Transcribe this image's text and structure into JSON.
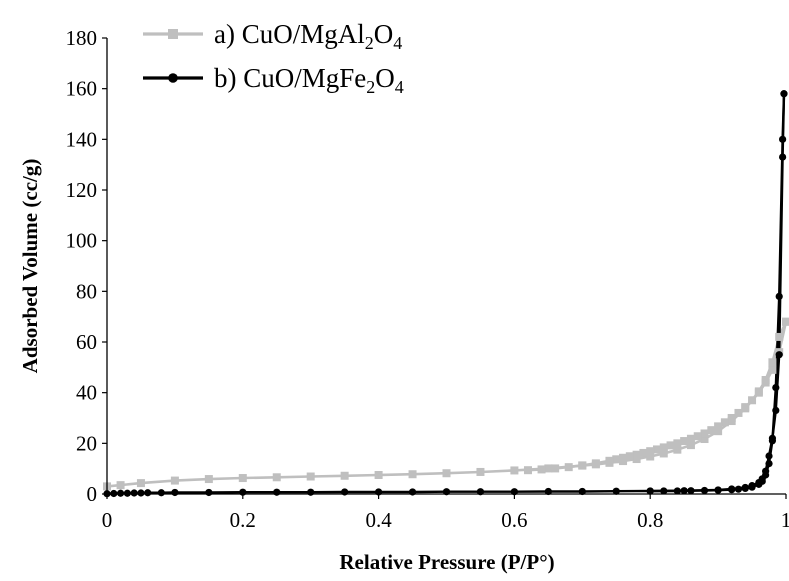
{
  "chart_data": {
    "type": "scatter",
    "xlabel": "Relative Pressure (P/P°)",
    "ylabel": "Adsorbed Volume (cc/g)",
    "xlim": [
      0,
      1
    ],
    "ylim": [
      0,
      180
    ],
    "x_ticks": [
      "0",
      "0.2",
      "0.4",
      "0.6",
      "0.8",
      "1"
    ],
    "y_ticks": [
      "0",
      "20",
      "40",
      "60",
      "80",
      "100",
      "120",
      "140",
      "160",
      "180"
    ],
    "grid": false,
    "legend_position": "top-left",
    "series": [
      {
        "name_parts": [
          "a) CuO/MgAl",
          "2",
          "O",
          "4"
        ],
        "color": "#bfbfbf",
        "marker": "square",
        "adsorption": {
          "x": [
            0.0,
            0.02,
            0.05,
            0.1,
            0.15,
            0.2,
            0.25,
            0.3,
            0.35,
            0.4,
            0.45,
            0.5,
            0.55,
            0.6,
            0.65,
            0.7,
            0.72,
            0.74,
            0.76,
            0.78,
            0.8,
            0.82,
            0.84,
            0.86,
            0.88,
            0.9,
            0.92,
            0.94,
            0.96,
            0.97,
            0.98,
            0.99,
            1.0
          ],
          "y": [
            3.0,
            3.5,
            4.3,
            5.3,
            5.9,
            6.3,
            6.6,
            6.9,
            7.2,
            7.5,
            7.8,
            8.2,
            8.7,
            9.3,
            10.1,
            11.2,
            11.7,
            12.3,
            13.0,
            13.8,
            14.8,
            16.0,
            17.5,
            19.3,
            21.7,
            24.8,
            28.8,
            33.8,
            40.0,
            44.0,
            49.0,
            56.0,
            68.0
          ]
        },
        "desorption": {
          "x": [
            1.0,
            0.99,
            0.98,
            0.97,
            0.96,
            0.95,
            0.94,
            0.93,
            0.92,
            0.91,
            0.9,
            0.89,
            0.88,
            0.87,
            0.86,
            0.85,
            0.84,
            0.83,
            0.82,
            0.81,
            0.8,
            0.79,
            0.78,
            0.77,
            0.76,
            0.75,
            0.74,
            0.72,
            0.7,
            0.68,
            0.66,
            0.64,
            0.62
          ],
          "y": [
            68.0,
            62.0,
            52.0,
            45.0,
            40.5,
            37.0,
            34.3,
            32.0,
            30.0,
            28.3,
            26.7,
            25.2,
            23.9,
            22.8,
            21.8,
            20.9,
            20.0,
            19.2,
            18.4,
            17.6,
            16.9,
            16.2,
            15.5,
            14.9,
            14.3,
            13.7,
            13.1,
            12.1,
            11.3,
            10.6,
            10.1,
            9.7,
            9.4
          ]
        }
      },
      {
        "name_parts": [
          "b) CuO/MgFe",
          "2",
          "O",
          "4"
        ],
        "color": "#000000",
        "marker": "circle",
        "adsorption": {
          "x": [
            0.0,
            0.01,
            0.02,
            0.03,
            0.04,
            0.05,
            0.06,
            0.08,
            0.1,
            0.15,
            0.2,
            0.25,
            0.3,
            0.35,
            0.4,
            0.45,
            0.5,
            0.55,
            0.6,
            0.65,
            0.7,
            0.75,
            0.8,
            0.85,
            0.9,
            0.92,
            0.94,
            0.95,
            0.96,
            0.965,
            0.97,
            0.975,
            0.98,
            0.985,
            0.99,
            0.995,
            0.997
          ],
          "y": [
            0.1,
            0.2,
            0.3,
            0.3,
            0.4,
            0.4,
            0.5,
            0.5,
            0.6,
            0.6,
            0.7,
            0.7,
            0.7,
            0.8,
            0.8,
            0.8,
            0.9,
            0.9,
            0.9,
            1.0,
            1.0,
            1.1,
            1.2,
            1.3,
            1.6,
            2.0,
            2.6,
            3.3,
            4.5,
            6.0,
            9.0,
            15.0,
            22.0,
            33.0,
            55.0,
            133.0,
            158.0
          ]
        },
        "desorption": {
          "x": [
            0.997,
            0.995,
            0.99,
            0.985,
            0.98,
            0.975,
            0.97,
            0.965,
            0.96,
            0.95,
            0.94,
            0.93,
            0.92,
            0.9,
            0.88,
            0.86,
            0.84,
            0.82,
            0.8
          ],
          "y": [
            158.0,
            140.0,
            78.0,
            42.0,
            21.0,
            12.0,
            7.5,
            5.0,
            3.8,
            2.7,
            2.2,
            1.9,
            1.7,
            1.5,
            1.4,
            1.3,
            1.2,
            1.2,
            1.1
          ]
        }
      }
    ]
  }
}
